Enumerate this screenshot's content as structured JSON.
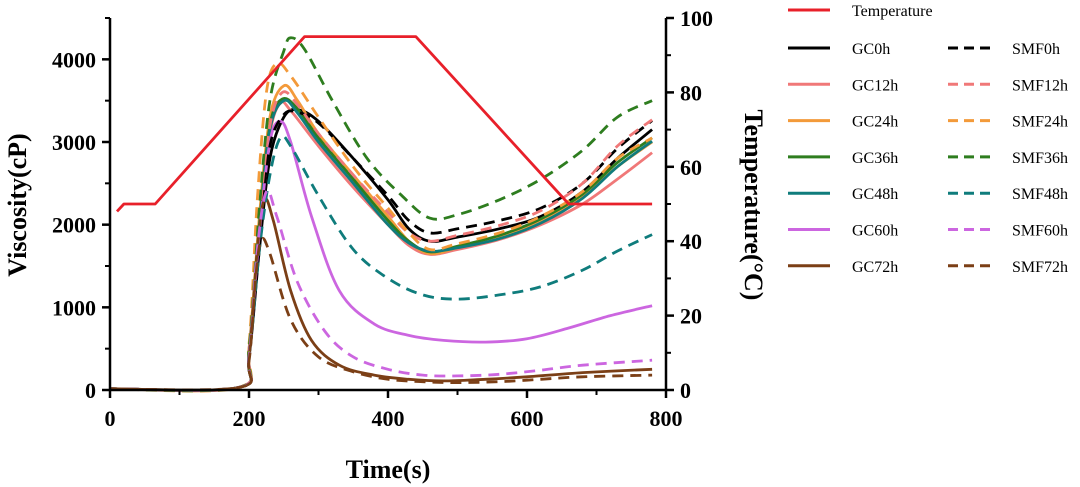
{
  "chart_data": {
    "type": "line",
    "xlabel": "Time(s)",
    "ylabel": "Viscosity(cP)",
    "y2label": "Temperature(°C)",
    "xlim": [
      0,
      800
    ],
    "ylim": [
      0,
      4500
    ],
    "y2lim": [
      0,
      100
    ],
    "xticks": [
      "0",
      "200",
      "400",
      "600",
      "800"
    ],
    "yticks": [
      "0",
      "1000",
      "2000",
      "3000",
      "4000"
    ],
    "y2ticks": [
      "0",
      "20",
      "40",
      "60",
      "80",
      "100"
    ],
    "grid": false,
    "legend_position": "right",
    "temperature": {
      "name": "Temperature",
      "color": "#e8202a",
      "axis": "right",
      "points": [
        [
          10,
          48
        ],
        [
          20,
          50
        ],
        [
          65,
          50
        ],
        [
          280,
          95
        ],
        [
          440,
          95
        ],
        [
          660,
          50
        ],
        [
          780,
          50
        ]
      ]
    },
    "series": [
      {
        "name": "GC0h",
        "color": "#000000",
        "dash": "solid",
        "points": [
          [
            0,
            15
          ],
          [
            185,
            30
          ],
          [
            200,
            400
          ],
          [
            215,
            1700
          ],
          [
            230,
            2800
          ],
          [
            250,
            3300
          ],
          [
            270,
            3390
          ],
          [
            300,
            3250
          ],
          [
            350,
            2800
          ],
          [
            400,
            2300
          ],
          [
            430,
            1950
          ],
          [
            460,
            1800
          ],
          [
            500,
            1850
          ],
          [
            560,
            1950
          ],
          [
            620,
            2100
          ],
          [
            680,
            2400
          ],
          [
            730,
            2800
          ],
          [
            780,
            3150
          ]
        ]
      },
      {
        "name": "GC12h",
        "color": "#f07878",
        "dash": "solid",
        "points": [
          [
            0,
            15
          ],
          [
            185,
            30
          ],
          [
            200,
            500
          ],
          [
            215,
            2000
          ],
          [
            230,
            3100
          ],
          [
            245,
            3470
          ],
          [
            260,
            3380
          ],
          [
            300,
            2950
          ],
          [
            350,
            2450
          ],
          [
            400,
            2000
          ],
          [
            430,
            1750
          ],
          [
            460,
            1640
          ],
          [
            500,
            1700
          ],
          [
            560,
            1820
          ],
          [
            620,
            2000
          ],
          [
            680,
            2250
          ],
          [
            730,
            2550
          ],
          [
            780,
            2870
          ]
        ]
      },
      {
        "name": "GC24h",
        "color": "#f39a3a",
        "dash": "solid",
        "points": [
          [
            0,
            15
          ],
          [
            185,
            30
          ],
          [
            200,
            500
          ],
          [
            215,
            2100
          ],
          [
            230,
            3300
          ],
          [
            250,
            3680
          ],
          [
            270,
            3500
          ],
          [
            300,
            3100
          ],
          [
            350,
            2600
          ],
          [
            400,
            2100
          ],
          [
            430,
            1800
          ],
          [
            460,
            1650
          ],
          [
            500,
            1720
          ],
          [
            560,
            1850
          ],
          [
            620,
            2050
          ],
          [
            680,
            2350
          ],
          [
            730,
            2700
          ],
          [
            780,
            3000
          ]
        ]
      },
      {
        "name": "GC36h",
        "color": "#2e7d1f",
        "dash": "solid",
        "points": [
          [
            0,
            15
          ],
          [
            185,
            30
          ],
          [
            200,
            450
          ],
          [
            215,
            2000
          ],
          [
            230,
            3200
          ],
          [
            248,
            3520
          ],
          [
            270,
            3400
          ],
          [
            300,
            3050
          ],
          [
            350,
            2550
          ],
          [
            400,
            2050
          ],
          [
            430,
            1800
          ],
          [
            460,
            1670
          ],
          [
            500,
            1740
          ],
          [
            560,
            1870
          ],
          [
            620,
            2070
          ],
          [
            680,
            2370
          ],
          [
            730,
            2750
          ],
          [
            780,
            3050
          ]
        ]
      },
      {
        "name": "GC48h",
        "color": "#0f7c7c",
        "dash": "solid",
        "points": [
          [
            0,
            15
          ],
          [
            185,
            30
          ],
          [
            200,
            450
          ],
          [
            215,
            1950
          ],
          [
            230,
            3150
          ],
          [
            250,
            3500
          ],
          [
            270,
            3350
          ],
          [
            300,
            3000
          ],
          [
            350,
            2500
          ],
          [
            400,
            2000
          ],
          [
            430,
            1780
          ],
          [
            460,
            1680
          ],
          [
            500,
            1720
          ],
          [
            560,
            1830
          ],
          [
            620,
            2020
          ],
          [
            680,
            2320
          ],
          [
            730,
            2700
          ],
          [
            780,
            3010
          ]
        ]
      },
      {
        "name": "GC60h",
        "color": "#cc66e0",
        "dash": "solid",
        "points": [
          [
            0,
            15
          ],
          [
            185,
            30
          ],
          [
            200,
            450
          ],
          [
            215,
            1900
          ],
          [
            230,
            3000
          ],
          [
            245,
            3250
          ],
          [
            260,
            3000
          ],
          [
            290,
            2100
          ],
          [
            330,
            1200
          ],
          [
            380,
            800
          ],
          [
            430,
            660
          ],
          [
            480,
            600
          ],
          [
            540,
            580
          ],
          [
            600,
            620
          ],
          [
            660,
            750
          ],
          [
            720,
            900
          ],
          [
            780,
            1020
          ]
        ]
      },
      {
        "name": "GC72h",
        "color": "#7b3f16",
        "dash": "solid",
        "points": [
          [
            0,
            15
          ],
          [
            185,
            30
          ],
          [
            200,
            400
          ],
          [
            212,
            1700
          ],
          [
            222,
            2300
          ],
          [
            235,
            2050
          ],
          [
            260,
            1200
          ],
          [
            290,
            600
          ],
          [
            330,
            300
          ],
          [
            380,
            180
          ],
          [
            430,
            130
          ],
          [
            480,
            110
          ],
          [
            540,
            130
          ],
          [
            600,
            160
          ],
          [
            680,
            210
          ],
          [
            780,
            250
          ]
        ]
      },
      {
        "name": "SMF0h",
        "color": "#000000",
        "dash": "dashed",
        "points": [
          [
            0,
            15
          ],
          [
            185,
            30
          ],
          [
            200,
            450
          ],
          [
            215,
            1900
          ],
          [
            230,
            2950
          ],
          [
            250,
            3330
          ],
          [
            270,
            3360
          ],
          [
            300,
            3230
          ],
          [
            350,
            2800
          ],
          [
            400,
            2350
          ],
          [
            430,
            2050
          ],
          [
            460,
            1900
          ],
          [
            500,
            1950
          ],
          [
            560,
            2050
          ],
          [
            620,
            2200
          ],
          [
            680,
            2500
          ],
          [
            730,
            2920
          ],
          [
            780,
            3260
          ]
        ]
      },
      {
        "name": "SMF12h",
        "color": "#f07878",
        "dash": "dashed",
        "points": [
          [
            0,
            15
          ],
          [
            185,
            30
          ],
          [
            200,
            500
          ],
          [
            215,
            2100
          ],
          [
            230,
            3200
          ],
          [
            248,
            3600
          ],
          [
            270,
            3450
          ],
          [
            300,
            3100
          ],
          [
            350,
            2600
          ],
          [
            400,
            2150
          ],
          [
            430,
            1900
          ],
          [
            460,
            1800
          ],
          [
            500,
            1870
          ],
          [
            560,
            1990
          ],
          [
            620,
            2170
          ],
          [
            680,
            2500
          ],
          [
            730,
            2950
          ],
          [
            780,
            3270
          ]
        ]
      },
      {
        "name": "SMF24h",
        "color": "#f39a3a",
        "dash": "dashed",
        "points": [
          [
            0,
            15
          ],
          [
            185,
            30
          ],
          [
            200,
            550
          ],
          [
            212,
            2300
          ],
          [
            225,
            3600
          ],
          [
            240,
            3950
          ],
          [
            260,
            3800
          ],
          [
            300,
            3300
          ],
          [
            350,
            2700
          ],
          [
            400,
            2200
          ],
          [
            430,
            1900
          ],
          [
            460,
            1700
          ],
          [
            500,
            1770
          ],
          [
            560,
            1900
          ],
          [
            620,
            2100
          ],
          [
            680,
            2400
          ],
          [
            730,
            2800
          ],
          [
            780,
            3050
          ]
        ]
      },
      {
        "name": "SMF36h",
        "color": "#2e7d1f",
        "dash": "dashed",
        "points": [
          [
            0,
            15
          ],
          [
            185,
            30
          ],
          [
            200,
            500
          ],
          [
            215,
            2200
          ],
          [
            230,
            3500
          ],
          [
            250,
            4100
          ],
          [
            260,
            4260
          ],
          [
            280,
            4120
          ],
          [
            320,
            3500
          ],
          [
            370,
            2800
          ],
          [
            420,
            2350
          ],
          [
            460,
            2080
          ],
          [
            500,
            2120
          ],
          [
            560,
            2300
          ],
          [
            620,
            2550
          ],
          [
            680,
            2900
          ],
          [
            730,
            3300
          ],
          [
            780,
            3500
          ]
        ]
      },
      {
        "name": "SMF48h",
        "color": "#0f7c7c",
        "dash": "dashed",
        "points": [
          [
            0,
            15
          ],
          [
            185,
            30
          ],
          [
            200,
            400
          ],
          [
            215,
            1700
          ],
          [
            230,
            2600
          ],
          [
            245,
            3050
          ],
          [
            260,
            2950
          ],
          [
            300,
            2350
          ],
          [
            350,
            1700
          ],
          [
            400,
            1350
          ],
          [
            450,
            1150
          ],
          [
            500,
            1100
          ],
          [
            560,
            1150
          ],
          [
            620,
            1250
          ],
          [
            680,
            1450
          ],
          [
            730,
            1680
          ],
          [
            780,
            1880
          ]
        ]
      },
      {
        "name": "SMF60h",
        "color": "#cc66e0",
        "dash": "dashed",
        "points": [
          [
            0,
            15
          ],
          [
            185,
            30
          ],
          [
            200,
            400
          ],
          [
            212,
            1700
          ],
          [
            225,
            2400
          ],
          [
            240,
            2100
          ],
          [
            270,
            1300
          ],
          [
            310,
            700
          ],
          [
            350,
            400
          ],
          [
            400,
            250
          ],
          [
            450,
            180
          ],
          [
            500,
            170
          ],
          [
            560,
            190
          ],
          [
            620,
            240
          ],
          [
            680,
            300
          ],
          [
            780,
            360
          ]
        ]
      },
      {
        "name": "SMF72h",
        "color": "#7b3f16",
        "dash": "dashed",
        "points": [
          [
            0,
            15
          ],
          [
            185,
            30
          ],
          [
            200,
            350
          ],
          [
            210,
            1400
          ],
          [
            218,
            1820
          ],
          [
            230,
            1650
          ],
          [
            260,
            850
          ],
          [
            300,
            400
          ],
          [
            350,
            220
          ],
          [
            400,
            130
          ],
          [
            450,
            100
          ],
          [
            500,
            90
          ],
          [
            560,
            100
          ],
          [
            620,
            130
          ],
          [
            680,
            160
          ],
          [
            780,
            180
          ]
        ]
      }
    ]
  }
}
